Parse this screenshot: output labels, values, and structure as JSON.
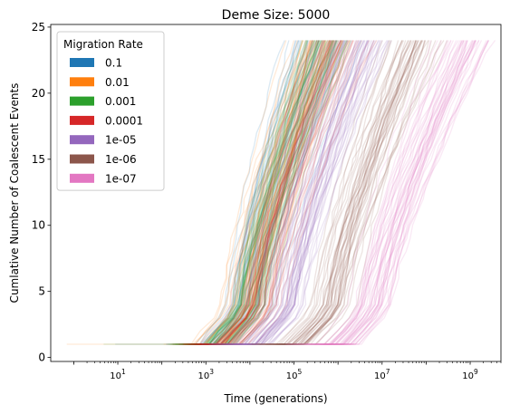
{
  "chart_data": {
    "type": "line",
    "title": "Deme Size: 5000",
    "xlabel": "Time (generations)",
    "ylabel": "Cumlative Number of Coalescent Events",
    "x_scale": "log",
    "xlim": [
      0.3,
      5000000000
    ],
    "ylim": [
      -0.3,
      25.2
    ],
    "grid": false,
    "legend": {
      "title": "Migration Rate",
      "placement": "top-left"
    },
    "x_ticks": [
      {
        "value": 10,
        "base": "10",
        "exp": "1"
      },
      {
        "value": 1000,
        "base": "10",
        "exp": "3"
      },
      {
        "value": 100000,
        "base": "10",
        "exp": "5"
      },
      {
        "value": 10000000,
        "base": "10",
        "exp": "7"
      },
      {
        "value": 1000000000,
        "base": "10",
        "exp": "9"
      }
    ],
    "y_ticks": [
      "0",
      "5",
      "10",
      "15",
      "20",
      "25"
    ],
    "runs_per_series": 40,
    "coalescent_events_per_run": 24,
    "series": [
      {
        "name": "0.1",
        "color": "#1f77b4",
        "t_start_log10": 3.0,
        "t_mid_log10": 4.55,
        "t_end_log10": 5.6
      },
      {
        "name": "0.01",
        "color": "#ff7f0e",
        "t_start_log10": 3.0,
        "t_mid_log10": 4.55,
        "t_end_log10": 5.6
      },
      {
        "name": "0.001",
        "color": "#2ca02c",
        "t_start_log10": 3.0,
        "t_mid_log10": 4.6,
        "t_end_log10": 5.7
      },
      {
        "name": "0.0001",
        "color": "#d62728",
        "t_start_log10": 3.2,
        "t_mid_log10": 4.8,
        "t_end_log10": 6.0
      },
      {
        "name": "1e-05",
        "color": "#9467bd",
        "t_start_log10": 3.9,
        "t_mid_log10": 5.5,
        "t_end_log10": 6.6
      },
      {
        "name": "1e-06",
        "color": "#8c564b",
        "t_start_log10": 4.8,
        "t_mid_log10": 6.55,
        "t_end_log10": 7.8
      },
      {
        "name": "1e-07",
        "color": "#e377c2",
        "t_start_log10": 5.8,
        "t_mid_log10": 7.4,
        "t_end_log10": 8.9
      }
    ]
  }
}
